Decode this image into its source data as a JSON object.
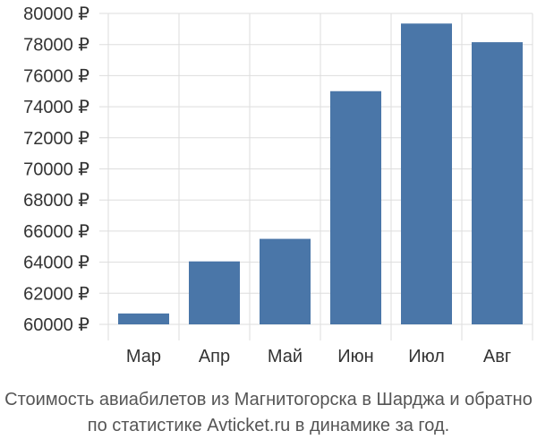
{
  "chart_data": {
    "type": "bar",
    "categories": [
      "Мар",
      "Апр",
      "Май",
      "Июн",
      "Июл",
      "Авг"
    ],
    "values": [
      60700,
      64050,
      65500,
      75000,
      79350,
      78150
    ],
    "ylim": [
      60000,
      80000
    ],
    "yticks": [
      60000,
      62000,
      64000,
      66000,
      68000,
      70000,
      72000,
      74000,
      76000,
      78000,
      80000
    ],
    "ytick_labels": [
      "60000 ₽",
      "62000 ₽",
      "64000 ₽",
      "66000 ₽",
      "68000 ₽",
      "70000 ₽",
      "72000 ₽",
      "74000 ₽",
      "76000 ₽",
      "78000 ₽",
      "80000 ₽"
    ],
    "grid": true,
    "bar_color": "#4a76a8",
    "grid_color": "#dddddd"
  },
  "caption": {
    "line1": "Стоимость авиабилетов из Магнитогорска в Шарджа и обратно",
    "line2": "по статистике Avticket.ru в динамике за год."
  }
}
